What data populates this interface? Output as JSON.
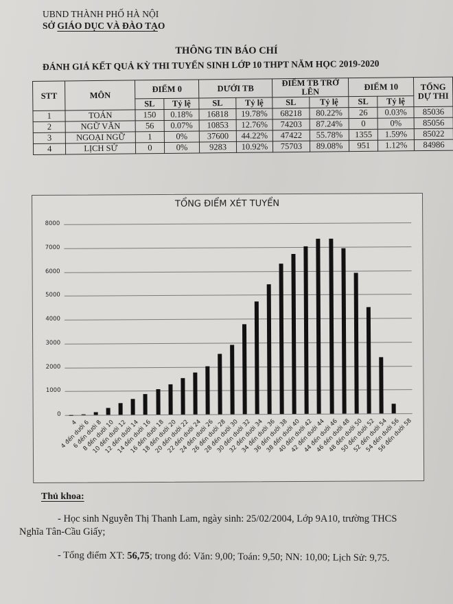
{
  "header": {
    "org_line1": "UBND THÀNH PHỐ HÀ NỘI",
    "org_line2_prefix": "SỞ ",
    "org_line2_underlined": "GIÁO DỤC VÀ ĐÀO TẠ",
    "org_line2_suffix": "O",
    "title": "THÔNG TIN BÁO CHÍ",
    "subtitle": "ĐÁNH GIÁ KẾT QUẢ KỲ THI TUYỂN SINH LỚP 10 THPT NĂM HỌC 2019-2020"
  },
  "table": {
    "headers": {
      "stt": "STT",
      "mon": "MÔN",
      "diem0": "ĐIỂM 0",
      "duoitb": "DƯỚI TB",
      "tbtrolen": "ĐIỂM TB TRỞ LÊN",
      "diem10": "ĐIỂM 10",
      "tongduthi": "TỔNG DỰ THI",
      "sl": "SL",
      "tyle": "Tỷ lệ"
    },
    "rows": [
      {
        "stt": "1",
        "mon": "TOÁN",
        "d0_sl": "150",
        "d0_tl": "0.18%",
        "dtb_sl": "16818",
        "dtb_tl": "19.78%",
        "tb_sl": "68218",
        "tb_tl": "80.22%",
        "d10_sl": "26",
        "d10_tl": "0.03%",
        "tong": "85036"
      },
      {
        "stt": "2",
        "mon": "NGỮ VĂN",
        "d0_sl": "56",
        "d0_tl": "0.07%",
        "dtb_sl": "10853",
        "dtb_tl": "12.76%",
        "tb_sl": "74203",
        "tb_tl": "87.24%",
        "d10_sl": "0",
        "d10_tl": "0%",
        "tong": "85056"
      },
      {
        "stt": "3",
        "mon": "NGOẠI NGỮ",
        "d0_sl": "1",
        "d0_tl": "0%",
        "dtb_sl": "37600",
        "dtb_tl": "44.22%",
        "tb_sl": "47422",
        "tb_tl": "55.78%",
        "d10_sl": "1355",
        "d10_tl": "1.59%",
        "tong": "85022"
      },
      {
        "stt": "4",
        "mon": "LỊCH SỬ",
        "d0_sl": "0",
        "d0_tl": "0%",
        "dtb_sl": "9283",
        "dtb_tl": "10.92%",
        "tb_sl": "75703",
        "tb_tl": "89.08%",
        "d10_sl": "951",
        "d10_tl": "1.12%",
        "tong": "84986"
      }
    ]
  },
  "chart_data": {
    "type": "bar",
    "title": "TỔNG ĐIỂM XÉT TUYỂN",
    "xlabel": "",
    "ylabel": "",
    "ylim": [
      0,
      8000
    ],
    "yticks": [
      "0",
      "1000",
      "2000",
      "3000",
      "4000",
      "5000",
      "6000",
      "7000",
      "8000"
    ],
    "grid": true,
    "legend": "none",
    "categories": [
      "4",
      "4 đến dưới 6",
      "6 đến dưới 8",
      "8 đến dưới 10",
      "10 đến dưới 12",
      "12 đến dưới 14",
      "14 đến dưới 16",
      "16 đến dưới 18",
      "18 đến dưới 20",
      "20 đến dưới 22",
      "22 đến dưới 24",
      "24 đến dưới 26",
      "26 đến dưới 28",
      "28 đến dưới 30",
      "30 đến dưới 32",
      "32 đến dưới 34",
      "34 đến dưới 36",
      "36 đến dưới 38",
      "38 đến dưới 40",
      "40 đến dưới 42",
      "42 đến dưới 44",
      "44 đến dưới 46",
      "46 đến dưới 48",
      "48 đến dưới 50",
      "50 đến dưới 52",
      "52 đến dưới 54",
      "54 đến dưới 56",
      "56 đến dưới 58"
    ],
    "values": [
      5,
      15,
      110,
      280,
      500,
      650,
      850,
      1060,
      1280,
      1520,
      1770,
      2010,
      2520,
      2900,
      3780,
      4720,
      5430,
      6300,
      6700,
      7030,
      7330,
      7330,
      6950,
      5900,
      4460,
      2350,
      400,
      0
    ]
  },
  "footer": {
    "heading": "Thủ khoa:",
    "line1": "- Học sinh Nguyễn Thị Thanh Lam, ngày sinh: 25/02/2004, Lớp 9A10, trường THCS Nghĩa Tân-Cầu Giấy;",
    "line2_prefix": "- Tổng điểm XT: ",
    "line2_total": "56,75",
    "line2_suffix": "; trong đó: Văn: 9,00; Toán: 9,50; NN: 10,00; Lịch Sử: 9,75."
  }
}
